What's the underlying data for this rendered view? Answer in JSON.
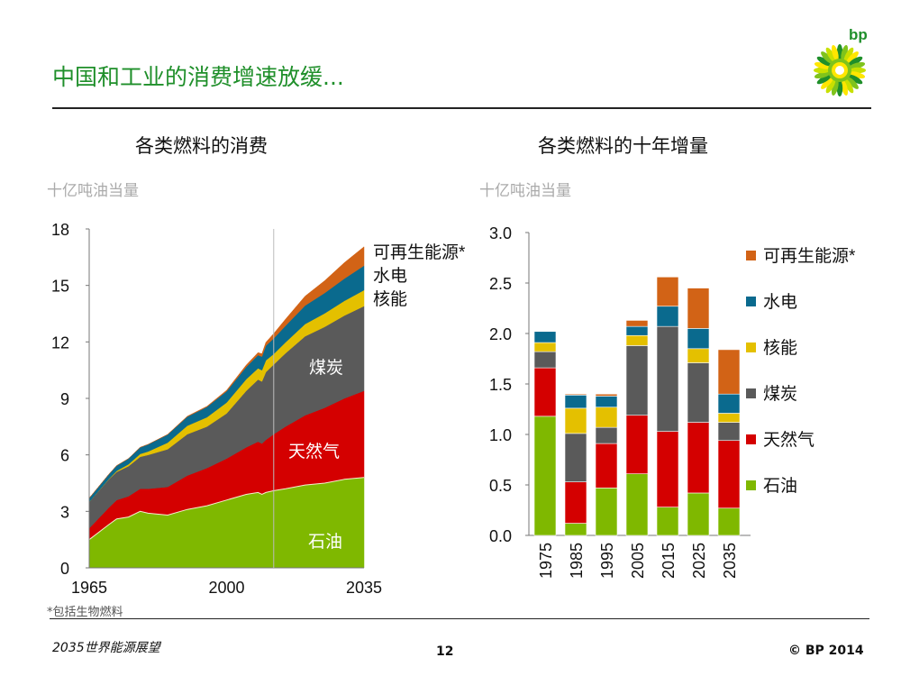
{
  "slide": {
    "title": "中国和工业的消费增速放缓...",
    "footnote": "*包括生物燃料",
    "footer_left": "2035世界能源展望",
    "page_number": "12",
    "copyright": "© BP 2014",
    "logo_text": "bp"
  },
  "colors": {
    "oil": "#7fb800",
    "gas": "#d40000",
    "coal": "#5a5a5a",
    "nuclear": "#e4c000",
    "hydro": "#0a6a8e",
    "renewables": "#d26316",
    "title": "#1f8f2a"
  },
  "chart_data": [
    {
      "type": "area",
      "title": "各类燃料的消费",
      "ylabel": "十亿吨油当量",
      "xlim": [
        1965,
        2035
      ],
      "ylim": [
        0,
        18
      ],
      "yticks": [
        "0",
        "3",
        "6",
        "9",
        "12",
        "15",
        "18"
      ],
      "xticks": [
        "1965",
        "2000",
        "2035"
      ],
      "divider_year": 2012,
      "x": [
        1965,
        1970,
        1972,
        1975,
        1978,
        1980,
        1985,
        1990,
        1995,
        2000,
        2005,
        2008,
        2009,
        2010,
        2012,
        2015,
        2020,
        2025,
        2030,
        2035
      ],
      "series": [
        {
          "name": "石油",
          "key": "oil",
          "values": [
            1.5,
            2.3,
            2.6,
            2.7,
            3.0,
            2.9,
            2.8,
            3.1,
            3.3,
            3.6,
            3.9,
            4.0,
            3.9,
            4.0,
            4.1,
            4.2,
            4.4,
            4.5,
            4.7,
            4.8
          ]
        },
        {
          "name": "天然气",
          "key": "gas",
          "values": [
            0.6,
            0.9,
            1.0,
            1.1,
            1.2,
            1.3,
            1.5,
            1.8,
            2.0,
            2.2,
            2.5,
            2.7,
            2.7,
            2.8,
            3.0,
            3.3,
            3.7,
            4.0,
            4.3,
            4.6
          ]
        },
        {
          "name": "煤炭",
          "key": "coal",
          "values": [
            1.4,
            1.5,
            1.5,
            1.6,
            1.7,
            1.8,
            2.0,
            2.2,
            2.2,
            2.4,
            3.0,
            3.3,
            3.3,
            3.6,
            3.7,
            3.9,
            4.2,
            4.3,
            4.4,
            4.5
          ]
        },
        {
          "name": "核能",
          "key": "nuclear",
          "values": [
            0.0,
            0.02,
            0.05,
            0.1,
            0.15,
            0.18,
            0.35,
            0.45,
            0.5,
            0.58,
            0.62,
            0.6,
            0.6,
            0.62,
            0.56,
            0.58,
            0.65,
            0.72,
            0.78,
            0.85
          ]
        },
        {
          "name": "水电",
          "key": "hydro",
          "values": [
            0.2,
            0.25,
            0.28,
            0.3,
            0.35,
            0.38,
            0.43,
            0.48,
            0.55,
            0.6,
            0.65,
            0.7,
            0.72,
            0.78,
            0.83,
            0.88,
            0.98,
            1.08,
            1.18,
            1.3
          ]
        },
        {
          "name": "可再生能源*",
          "key": "renewables",
          "values": [
            0.0,
            0.0,
            0.0,
            0.0,
            0.0,
            0.0,
            0.01,
            0.02,
            0.03,
            0.05,
            0.1,
            0.13,
            0.15,
            0.18,
            0.25,
            0.35,
            0.5,
            0.65,
            0.85,
            1.0
          ]
        }
      ],
      "labels": {
        "renewables": "可再生能源*",
        "hydro": "水电",
        "nuclear": "核能",
        "coal": "煤炭",
        "gas": "天然气",
        "oil": "石油"
      }
    },
    {
      "type": "bar",
      "stacked": true,
      "title": "各类燃料的十年增量",
      "ylabel": "十亿吨油当量",
      "ylim": [
        0,
        3.0
      ],
      "yticks": [
        "0.0",
        "0.5",
        "1.0",
        "1.5",
        "2.0",
        "2.5",
        "3.0"
      ],
      "categories": [
        "1975",
        "1985",
        "1995",
        "2005",
        "2015",
        "2025",
        "2035"
      ],
      "series": [
        {
          "name": "石油",
          "key": "oil",
          "values": [
            1.18,
            0.12,
            0.47,
            0.61,
            0.28,
            0.42,
            0.27
          ]
        },
        {
          "name": "天然气",
          "key": "gas",
          "values": [
            0.48,
            0.41,
            0.44,
            0.58,
            0.75,
            0.7,
            0.67
          ]
        },
        {
          "name": "煤炭",
          "key": "coal",
          "values": [
            0.16,
            0.48,
            0.16,
            0.69,
            1.04,
            0.59,
            0.18
          ]
        },
        {
          "name": "核能",
          "key": "nuclear",
          "values": [
            0.09,
            0.25,
            0.2,
            0.1,
            0.0,
            0.14,
            0.09
          ]
        },
        {
          "name": "水电",
          "key": "hydro",
          "values": [
            0.11,
            0.13,
            0.11,
            0.09,
            0.2,
            0.2,
            0.19
          ]
        },
        {
          "name": "可再生能源*",
          "key": "renewables",
          "values": [
            0.0,
            0.01,
            0.02,
            0.06,
            0.29,
            0.4,
            0.44
          ]
        }
      ],
      "legend": [
        "可再生能源*",
        "水电",
        "核能",
        "煤炭",
        "天然气",
        "石油"
      ],
      "legend_keys": [
        "renewables",
        "hydro",
        "nuclear",
        "coal",
        "gas",
        "oil"
      ]
    }
  ]
}
